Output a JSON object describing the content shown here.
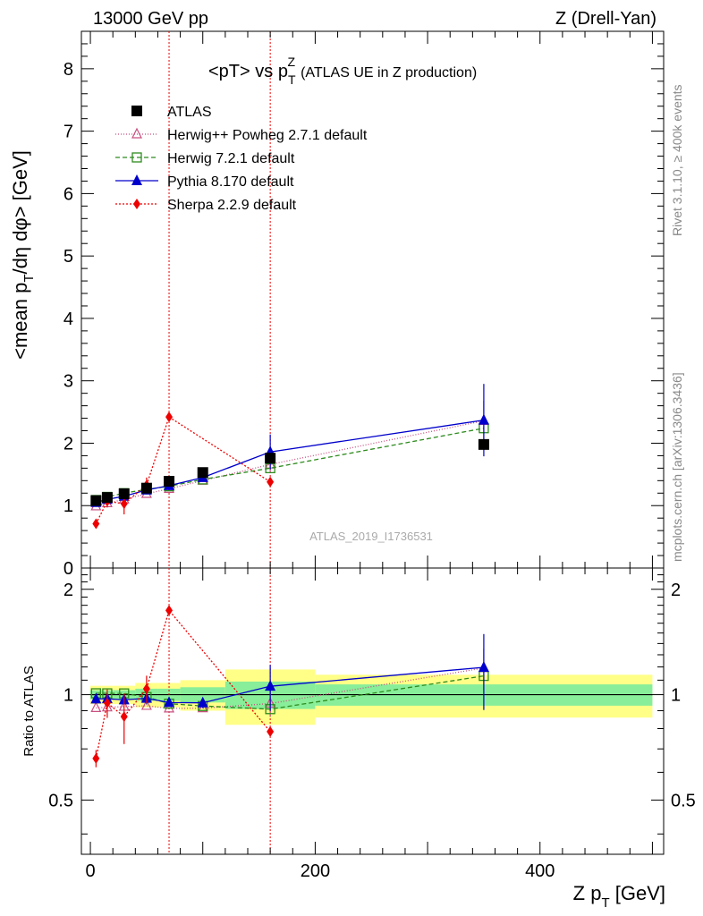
{
  "header": {
    "left": "13000 GeV pp",
    "right": "Z (Drell-Yan)"
  },
  "side": {
    "rivet": "Rivet 3.1.10, ≥ 400k events",
    "mcplots": "mcplots.cern.ch [arXiv:1306.3436]"
  },
  "chart_data": {
    "type": "line",
    "title_main": "<pT> vs p",
    "title_sub": "T",
    "title_sup": "Z",
    "title_rest": "(ATLAS UE in Z production)",
    "analysis_id": "ATLAS_2019_I1736531",
    "ylabel": "<mean p_T/dη dφ> [GeV]",
    "ratio_ylabel": "Ratio to ATLAS",
    "xlabel": "Z p_T [GeV]",
    "xlim": [
      -8,
      510
    ],
    "ylim": [
      0,
      8.6
    ],
    "ratio_ylim": [
      0.35,
      2.3
    ],
    "x_ticks": [
      0,
      200,
      400
    ],
    "y_ticks": [
      0,
      1,
      2,
      3,
      4,
      5,
      6,
      7,
      8
    ],
    "ratio_ticks": [
      0.5,
      1,
      2
    ],
    "vlines": [
      70,
      160
    ],
    "data": {
      "name": "ATLAS",
      "x": [
        5,
        15,
        30,
        50,
        70,
        100,
        160,
        350
      ],
      "y": [
        1.08,
        1.13,
        1.19,
        1.28,
        1.39,
        1.53,
        1.76,
        1.98
      ],
      "band_edges": [
        0,
        10,
        20,
        40,
        60,
        80,
        120,
        200,
        500
      ],
      "ratio_err": [
        0.03,
        0.03,
        0.03,
        0.04,
        0.04,
        0.05,
        0.09,
        0.07
      ]
    },
    "series": [
      {
        "name": "Herwig++ Powheg 2.7.1 default",
        "color": "#c85080",
        "marker": "triangle-open",
        "dash": "1,2",
        "x": [
          5,
          15,
          30,
          50,
          70,
          100,
          160,
          350
        ],
        "y": [
          0.99,
          1.04,
          1.1,
          1.19,
          1.27,
          1.4,
          1.66,
          2.36
        ],
        "err": [
          0,
          0,
          0,
          0,
          0,
          0,
          0.14,
          0.32
        ]
      },
      {
        "name": "Herwig 7.2.1 default",
        "color": "#2e8b1e",
        "marker": "square-open",
        "dash": "5,3",
        "x": [
          5,
          15,
          30,
          50,
          70,
          100,
          160,
          350
        ],
        "y": [
          1.09,
          1.14,
          1.2,
          1.26,
          1.31,
          1.42,
          1.6,
          2.24
        ],
        "err": [
          0,
          0,
          0,
          0,
          0,
          0,
          0,
          0
        ]
      },
      {
        "name": "Pythia 8.170 default",
        "color": "#0000cc",
        "marker": "triangle",
        "dash": "",
        "x": [
          5,
          15,
          30,
          50,
          70,
          100,
          160,
          350
        ],
        "y": [
          1.05,
          1.1,
          1.15,
          1.25,
          1.32,
          1.45,
          1.86,
          2.37
        ],
        "err": [
          0,
          0,
          0,
          0.05,
          0,
          0.05,
          0.28,
          0.58
        ]
      },
      {
        "name": "Sherpa 2.2.9 default",
        "color": "#ee0000",
        "marker": "diamond",
        "dash": "2,2",
        "x": [
          5,
          15,
          30,
          50,
          70,
          160
        ],
        "y": [
          0.71,
          1.07,
          1.03,
          1.33,
          2.42,
          1.38
        ],
        "err": [
          0.04,
          0.1,
          0.17,
          0.12,
          0,
          0
        ]
      }
    ]
  }
}
